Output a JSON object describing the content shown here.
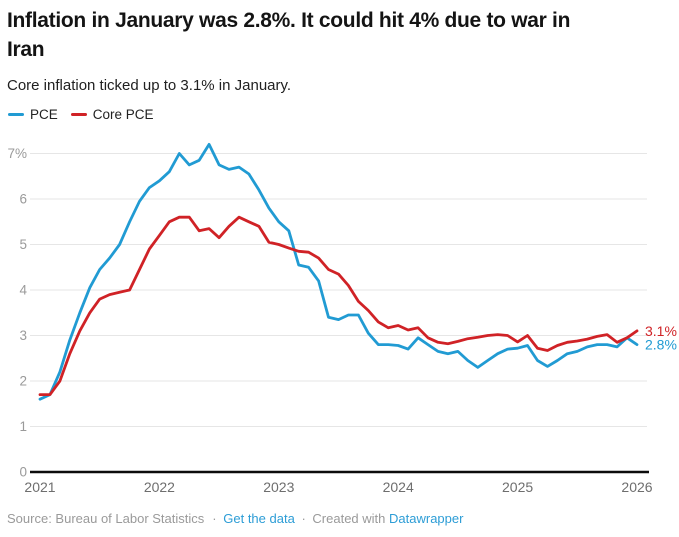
{
  "header": {
    "title_line1": "Inflation in January was 2.8%. It could hit 4% due to war in",
    "title_line2": "Iran",
    "subtitle": "Core inflation ticked up to 3.1% in January."
  },
  "legend": {
    "items": [
      {
        "label": "PCE",
        "color": "#219bd3"
      },
      {
        "label": "Core PCE",
        "color": "#d02226"
      }
    ]
  },
  "chart_data": {
    "type": "line",
    "title": "Inflation in January was 2.8%. It could hit 4% due to war in Iran",
    "subtitle": "Core inflation ticked up to 3.1% in January.",
    "xlabel": "",
    "ylabel": "",
    "x_unit": "month",
    "x_range": [
      "2021-01",
      "2026-01"
    ],
    "ylim": [
      0,
      7.4
    ],
    "grid": true,
    "legend_position": "top-left",
    "xticks": [
      "2021",
      "2022",
      "2023",
      "2024",
      "2025",
      "2026"
    ],
    "yticks": [
      {
        "value": 7,
        "label": "7%"
      },
      {
        "value": 6,
        "label": "6"
      },
      {
        "value": 5,
        "label": "5"
      },
      {
        "value": 4,
        "label": "4"
      },
      {
        "value": 3,
        "label": "3"
      },
      {
        "value": 2,
        "label": "2"
      },
      {
        "value": 1,
        "label": "1"
      },
      {
        "value": 0,
        "label": "0"
      }
    ],
    "series": [
      {
        "name": "PCE",
        "color": "#219bd3",
        "end_label": "2.8%",
        "values": [
          1.6,
          1.7,
          2.2,
          2.9,
          3.5,
          4.05,
          4.45,
          4.7,
          5.0,
          5.5,
          5.95,
          6.25,
          6.4,
          6.6,
          7.0,
          6.75,
          6.85,
          7.2,
          6.75,
          6.65,
          6.7,
          6.55,
          6.2,
          5.8,
          5.5,
          5.3,
          4.55,
          4.5,
          4.2,
          3.4,
          3.35,
          3.45,
          3.45,
          3.05,
          2.8,
          2.8,
          2.78,
          2.7,
          2.95,
          2.8,
          2.65,
          2.6,
          2.65,
          2.45,
          2.3,
          2.45,
          2.6,
          2.7,
          2.72,
          2.78,
          2.45,
          2.32,
          2.45,
          2.6,
          2.65,
          2.75,
          2.8,
          2.8,
          2.75,
          2.95,
          2.8
        ]
      },
      {
        "name": "Core PCE",
        "color": "#d02226",
        "end_label": "3.1%",
        "values": [
          1.7,
          1.7,
          2.0,
          2.6,
          3.1,
          3.5,
          3.8,
          3.9,
          3.95,
          4.0,
          4.45,
          4.9,
          5.2,
          5.5,
          5.6,
          5.6,
          5.3,
          5.35,
          5.15,
          5.4,
          5.6,
          5.5,
          5.4,
          5.05,
          5.0,
          4.92,
          4.85,
          4.83,
          4.7,
          4.45,
          4.35,
          4.1,
          3.75,
          3.55,
          3.3,
          3.17,
          3.22,
          3.12,
          3.17,
          2.95,
          2.85,
          2.82,
          2.87,
          2.93,
          2.96,
          3.0,
          3.02,
          3.0,
          2.86,
          3.0,
          2.72,
          2.67,
          2.78,
          2.85,
          2.88,
          2.92,
          2.98,
          3.02,
          2.85,
          2.95,
          3.1
        ]
      }
    ]
  },
  "footer": {
    "source": "Source: Bureau of Labor Statistics",
    "separator": "·",
    "get_data_label": "Get the data",
    "created_with": "Created with",
    "datawrapper_label": "Datawrapper"
  }
}
